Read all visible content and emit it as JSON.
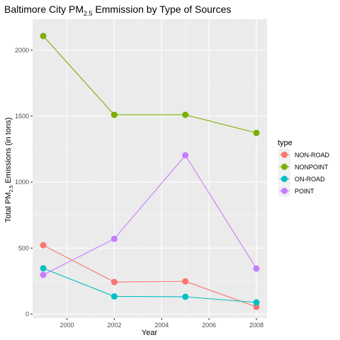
{
  "chart_data": {
    "type": "line",
    "title_main": "Baltimore City PM",
    "title_sub": "2.5",
    "title_tail": " Emmission by Type of Sources",
    "xlabel": "Year",
    "ylabel_main": "Total PM",
    "ylabel_sub": "2.5",
    "ylabel_tail": " Emissions (in tons)",
    "xlim": [
      1998.55,
      2008.45
    ],
    "ylim": [
      -30,
      2235
    ],
    "x_ticks": [
      2000,
      2002,
      2004,
      2006,
      2008
    ],
    "y_ticks": [
      0,
      500,
      1000,
      1500,
      2000
    ],
    "grid": true,
    "legend_title": "type",
    "legend_position": "right",
    "x": [
      1999,
      2002,
      2005,
      2008
    ],
    "series": [
      {
        "name": "NON-ROAD",
        "color": "#F8766D",
        "values": [
          522,
          243,
          248,
          55
        ]
      },
      {
        "name": "NONPOINT",
        "color": "#7CAE00",
        "values": [
          2107,
          1510,
          1510,
          1373
        ]
      },
      {
        "name": "ON-ROAD",
        "color": "#00BFC4",
        "values": [
          347,
          134,
          131,
          88
        ]
      },
      {
        "name": "POINT",
        "color": "#C77CFF",
        "values": [
          297,
          570,
          1203,
          345
        ]
      }
    ]
  }
}
